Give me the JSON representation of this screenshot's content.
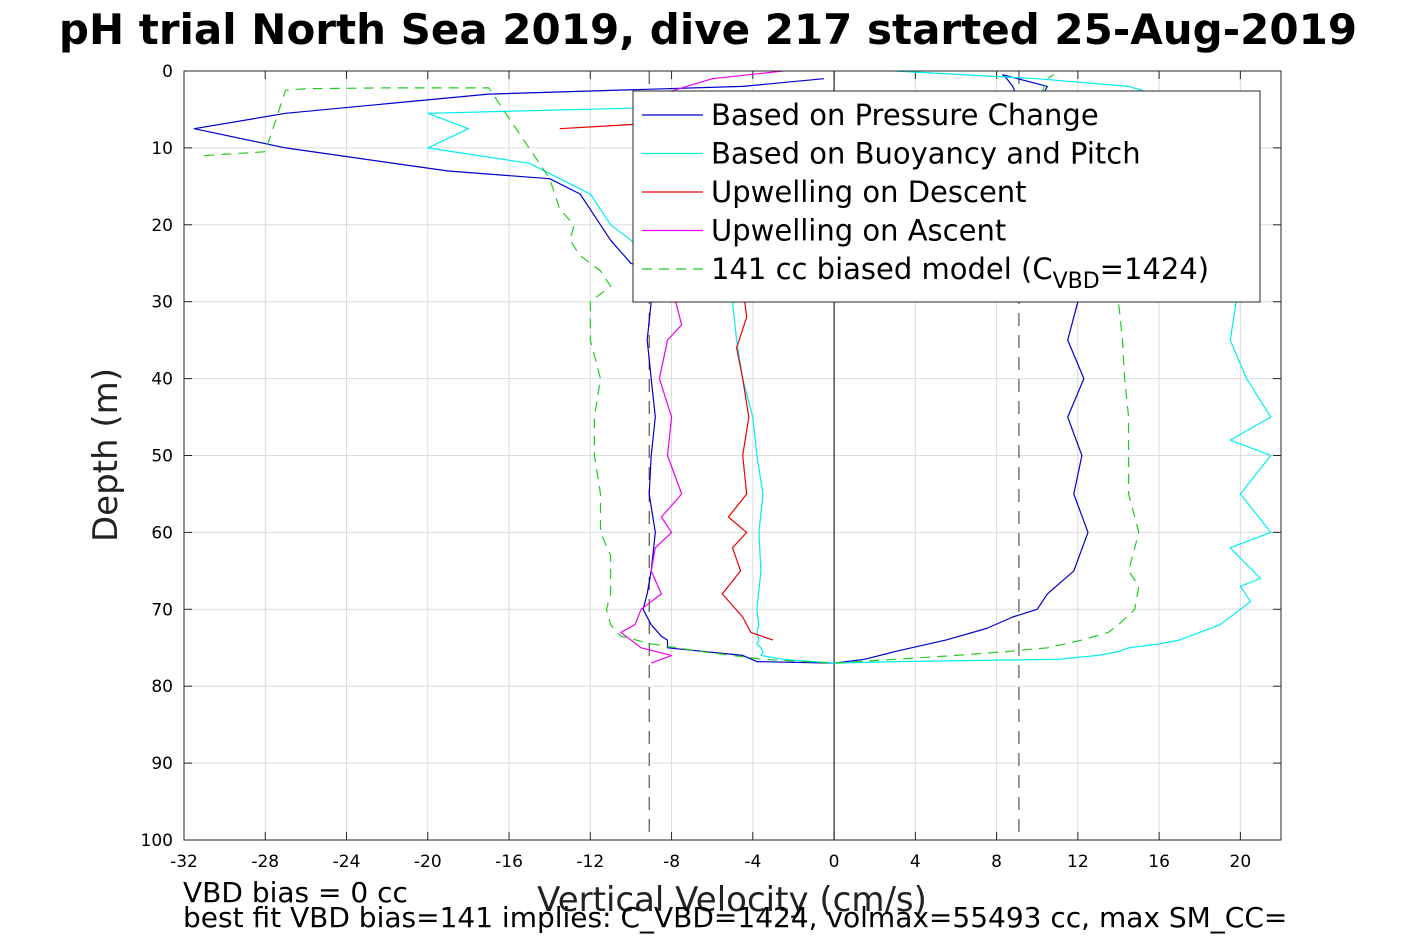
{
  "chart_data": {
    "type": "line",
    "title": "pH trial North Sea 2019, dive 217 started 25-Aug-2019",
    "xlabel": "Vertical Velocity (cm/s)",
    "ylabel": "Depth (m)",
    "xlim": [
      -32,
      22
    ],
    "ylim": [
      0,
      100
    ],
    "y_reversed": true,
    "grid": true,
    "legend_position": "top-right",
    "xticks": [
      -32,
      -28,
      -24,
      -20,
      -16,
      -12,
      -8,
      -4,
      0,
      4,
      8,
      12,
      16,
      20
    ],
    "yticks": [
      0,
      10,
      20,
      30,
      40,
      50,
      60,
      70,
      80,
      90,
      100
    ],
    "reference_lines": [
      {
        "x": -9.1,
        "style": "dashed",
        "color": "#333333"
      },
      {
        "x": 9.1,
        "style": "dashed",
        "color": "#333333"
      },
      {
        "x": 0,
        "style": "solid",
        "color": "#000000"
      }
    ],
    "series": [
      {
        "name": "Based on Pressure Change",
        "color": "#0000cc",
        "dash": "",
        "x": [
          -0.5,
          -4.5,
          -17,
          -27,
          -31.5,
          -27,
          -19,
          -14,
          -12.5,
          -12,
          -11,
          -10,
          -9,
          -9,
          -9.2,
          -9,
          -8.8,
          -9,
          -9.1,
          -8.8,
          -9,
          -9.2,
          -9.4,
          -9,
          -8.5,
          -8.2,
          -8.2,
          -4.5,
          -3.8,
          0,
          0,
          1.5,
          3,
          5.5,
          7.5,
          8.8,
          10,
          10.5,
          11.8,
          12.5,
          11.8,
          12.2,
          11.5,
          12.3,
          11.5,
          12,
          11.6,
          12.8,
          11.5,
          11.2,
          10.8,
          9.8,
          9.3,
          9.1,
          8.8,
          8.5,
          8.3,
          10.5,
          10.3
        ],
        "y": [
          1,
          2,
          3,
          5.5,
          7.5,
          10,
          13,
          14,
          16,
          18,
          22,
          25,
          26,
          30,
          35,
          40,
          45,
          50,
          55,
          60,
          65,
          68,
          70,
          72,
          73.5,
          74,
          75,
          76,
          76.8,
          77,
          77,
          76.5,
          75.5,
          74,
          72.5,
          71,
          70,
          68,
          65,
          60,
          55,
          50,
          45,
          40,
          35,
          30,
          28,
          25,
          20,
          15,
          10,
          8,
          6,
          4,
          2,
          1,
          0.5,
          2,
          3
        ]
      },
      {
        "name": "Based on Buoyancy and Pitch",
        "color": "#00eeee",
        "dash": "",
        "x": [
          -5,
          -20,
          -18,
          -20,
          -15,
          -13.5,
          -12,
          -11,
          -10,
          -9,
          -5,
          -4.8,
          -4.5,
          -4,
          -3.8,
          -3.5,
          -3.7,
          -3.6,
          -3.8,
          -3.7,
          -3.8,
          -3.7,
          -3.8,
          -3.6,
          -3.5,
          -3.6,
          -2.5,
          0,
          0,
          3,
          11,
          13,
          14,
          14.5,
          16,
          17,
          18,
          19,
          20.5,
          20,
          21,
          19.5,
          21.5,
          20,
          21.5,
          19.5,
          21.5,
          20.3,
          19.5,
          19.8,
          20,
          19.8,
          19.5,
          19,
          18.5,
          17.5,
          16,
          15.8,
          14.5,
          10,
          3
        ],
        "y": [
          4.5,
          5.5,
          7.5,
          10,
          12,
          14,
          16,
          20,
          22,
          25,
          30,
          35,
          40,
          45,
          50,
          55,
          60,
          65,
          70,
          72,
          73,
          74,
          74.5,
          75,
          75.5,
          76,
          76.5,
          77,
          77,
          76.8,
          76.5,
          76,
          75.5,
          75,
          74.5,
          74,
          73,
          72,
          69,
          67,
          66,
          62,
          60,
          55,
          50,
          48,
          45,
          40,
          35,
          30,
          25,
          20,
          15,
          10,
          8,
          6,
          4,
          3,
          2,
          1,
          0
        ]
      },
      {
        "name": "Upwelling on Descent",
        "color": "#ee0000",
        "dash": "",
        "x": [
          -13.5,
          -7,
          -6,
          -4.5,
          -4.3,
          -4.8,
          -4.5,
          -4.2,
          -4.5,
          -4.3,
          -5.2,
          -4.3,
          -5,
          -4.6,
          -5.5,
          -4.5,
          -4.1,
          -3
        ],
        "y": [
          7.5,
          6.5,
          9,
          28,
          32,
          36,
          40,
          45,
          50,
          55,
          58,
          60,
          62,
          65,
          68,
          71,
          73,
          74
        ]
      },
      {
        "name": "Upwelling on Ascent",
        "color": "#ee00ee",
        "dash": "",
        "x": [
          -2.5,
          -6,
          -8.5,
          -8,
          -7.5,
          -8.2,
          -8.6,
          -8,
          -8.2,
          -7.5,
          -8.5,
          -8,
          -8.8,
          -9,
          -8.5,
          -9.5,
          -9.8,
          -10.5,
          -9.5,
          -8,
          -9
        ],
        "y": [
          0,
          1,
          3,
          28,
          33,
          35,
          40,
          45,
          50,
          55,
          58,
          60,
          62,
          65,
          68,
          70,
          72,
          73,
          75,
          76,
          77
        ]
      },
      {
        "name": "141 cc biased model (C_VBD=1424)",
        "color": "#22cc22",
        "dash": "10,7",
        "x": [
          -31,
          -28,
          -27,
          -26,
          -22,
          -17,
          -14,
          -13.5,
          -12.8,
          -13,
          -12.5,
          -11.5,
          -11,
          -12,
          -12,
          -11.5,
          -11.8,
          -11.8,
          -11.5,
          -11.5,
          -11,
          -11,
          -11,
          -11.2,
          -11,
          -10.5,
          -9,
          -6.5,
          -3.5,
          0,
          0,
          3,
          6,
          8.5,
          10.5,
          12.2,
          13.5,
          14,
          14.8,
          15,
          14.5,
          15,
          14.5,
          14.5,
          14.5,
          14.3,
          14.2,
          14,
          13.6,
          13.3,
          12,
          11,
          10.3,
          10.2,
          10.5,
          10.8
        ],
        "y": [
          11,
          10.5,
          2.5,
          2.3,
          2.2,
          2.2,
          14,
          18,
          20,
          22,
          24,
          26,
          28,
          30,
          35,
          40,
          45,
          50,
          55,
          60,
          63,
          65,
          68,
          70,
          72,
          73.5,
          74.5,
          75.5,
          76.5,
          77,
          77,
          76.5,
          76,
          75.5,
          75,
          74,
          73,
          72,
          70,
          67,
          65,
          60,
          55,
          50,
          45,
          40,
          35,
          30,
          25,
          20,
          15,
          10,
          5,
          3,
          1,
          0.5
        ]
      }
    ],
    "annotations": [
      "VBD bias = 0 cc",
      "best fit VBD bias=141 implies: C_VBD=1424, volmax=55493 cc, max SM_CC="
    ]
  },
  "legend": {
    "entries": [
      {
        "label": "Based on Pressure Change",
        "color": "#0000cc",
        "dash": ""
      },
      {
        "label": "Based on Buoyancy and Pitch",
        "color": "#00eeee",
        "dash": ""
      },
      {
        "label": "Upwelling on Descent",
        "color": "#ee0000",
        "dash": ""
      },
      {
        "label": "Upwelling on Ascent",
        "color": "#ee00ee",
        "dash": ""
      },
      {
        "label": "141 cc biased model (C",
        "label_sub": "VBD",
        "label_end": "=1424)",
        "color": "#22cc22",
        "dash": "10,7"
      }
    ]
  }
}
